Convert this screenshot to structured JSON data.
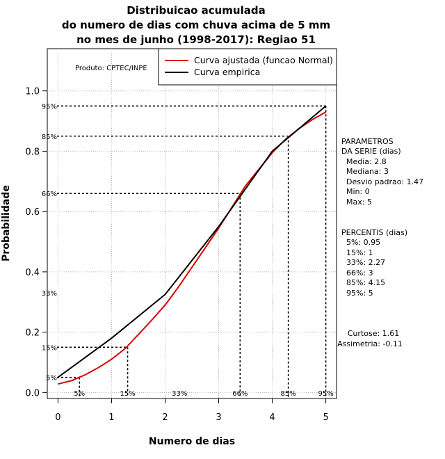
{
  "chart_data": {
    "type": "line",
    "title_lines": [
      "Distribuicao acumulada",
      "do numero de dias com chuva acima de 5 mm",
      "no mes de junho (1998-2017): Regiao 51"
    ],
    "xlabel": "Numero de dias",
    "ylabel": "Probabilidade",
    "xlim": [
      -0.2,
      5.2
    ],
    "ylim": [
      -0.02,
      1.14
    ],
    "xticks": [
      "0",
      "1",
      "2",
      "3",
      "4",
      "5"
    ],
    "yticks": [
      "0.0",
      "0.2",
      "0.4",
      "0.6",
      "0.8",
      "1.0"
    ],
    "grid": true,
    "producer": "Produto: CPTEC/INPE",
    "legend": {
      "position": "top-right",
      "entries": [
        {
          "label": "Curva ajustada (funcao Normal)",
          "color": "#dd0000"
        },
        {
          "label": "Curva empirica",
          "color": "#000000"
        }
      ]
    },
    "series": [
      {
        "name": "Curva ajustada (funcao Normal)",
        "color": "#dd0000",
        "x": [
          0,
          0.25,
          0.5,
          0.75,
          1,
          1.25,
          1.5,
          1.75,
          2,
          2.25,
          2.5,
          2.75,
          3,
          3.25,
          3.5,
          3.75,
          4,
          4.25,
          4.5,
          4.75,
          5
        ],
        "y": [
          0.028,
          0.039,
          0.058,
          0.082,
          0.11,
          0.145,
          0.192,
          0.24,
          0.29,
          0.35,
          0.415,
          0.48,
          0.545,
          0.615,
          0.685,
          0.74,
          0.795,
          0.84,
          0.875,
          0.905,
          0.93
        ]
      },
      {
        "name": "Curva empirica",
        "color": "#000000",
        "x": [
          0,
          1,
          2,
          3,
          4,
          5
        ],
        "y": [
          0.05,
          0.18,
          0.325,
          0.55,
          0.8,
          0.95
        ]
      }
    ],
    "percentile_lines": [
      {
        "label": "5%",
        "x": 0.4,
        "p": 0.05
      },
      {
        "label": "15%",
        "x": 1.3,
        "p": 0.15
      },
      {
        "label": "33%",
        "x": 2.27,
        "p": 0.33
      },
      {
        "label": "66%",
        "x": 3.4,
        "p": 0.66
      },
      {
        "label": "85%",
        "x": 4.3,
        "p": 0.85
      },
      {
        "label": "95%",
        "x": 5.0,
        "p": 0.95
      }
    ],
    "side_panel": {
      "param_header": [
        "PARAMETROS",
        "DA SERIE (dias)"
      ],
      "params": [
        "Media: 2.8",
        "Mediana: 3",
        "Desvio padrao: 1.47",
        "Min: 0",
        "Max: 5"
      ],
      "perc_header": "PERCENTIS (dias)",
      "percentis": [
        "5%: 0.95",
        "15%: 1",
        "33%: 2.27",
        "66%: 3",
        "85%: 4.15",
        "95%: 5"
      ],
      "stats": [
        "Curtose: 1.61",
        "Assimetria: -0.11"
      ]
    }
  }
}
